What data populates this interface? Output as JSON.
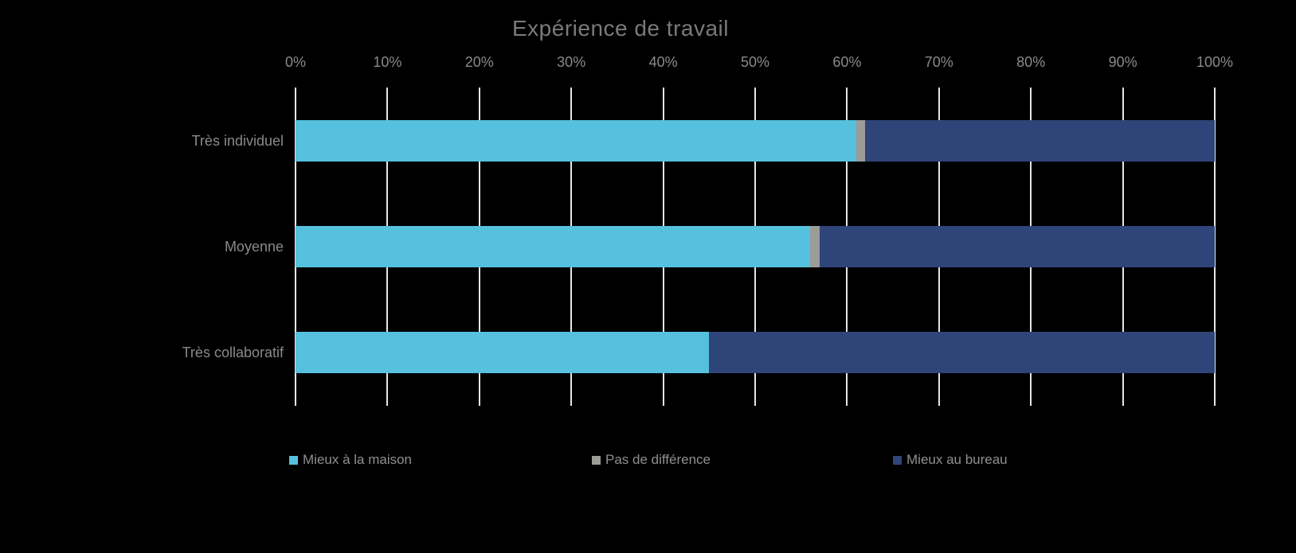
{
  "title": "Expérience de travail",
  "colors": {
    "background": "#000000",
    "title_text": "#7a7a7a",
    "axis_text": "#8a8a8a",
    "gridline": "#e6e6e6",
    "series_maison": "#55c1de",
    "series_difference": "#9b9b98",
    "series_bureau": "#2f4579"
  },
  "chart_data": {
    "type": "bar",
    "orientation": "horizontal",
    "stacked": true,
    "stacked_total": 100,
    "title": "Expérience de travail",
    "categories": [
      "Très individuel",
      "Moyenne",
      "Très collaboratif"
    ],
    "series": [
      {
        "name": "Mieux à la maison",
        "color": "#55c1de",
        "values": [
          61,
          56,
          45
        ]
      },
      {
        "name": "Pas de différence",
        "color": "#9b9b98",
        "values": [
          1,
          1,
          0
        ]
      },
      {
        "name": "Mieux au bureau",
        "color": "#2f4579",
        "values": [
          38,
          43,
          55
        ]
      }
    ],
    "x_axis": {
      "position": "top",
      "min": 0,
      "max": 100,
      "tick_step": 10,
      "ticks": [
        "0%",
        "10%",
        "20%",
        "30%",
        "40%",
        "50%",
        "60%",
        "70%",
        "80%",
        "90%",
        "100%"
      ]
    },
    "grid": true,
    "legend_position": "bottom"
  },
  "legend": {
    "items": [
      {
        "label": "Mieux à la maison",
        "color": "#55c1de"
      },
      {
        "label": "Pas de différence",
        "color": "#9b9b98"
      },
      {
        "label": "Mieux au bureau",
        "color": "#2f4579"
      }
    ]
  }
}
